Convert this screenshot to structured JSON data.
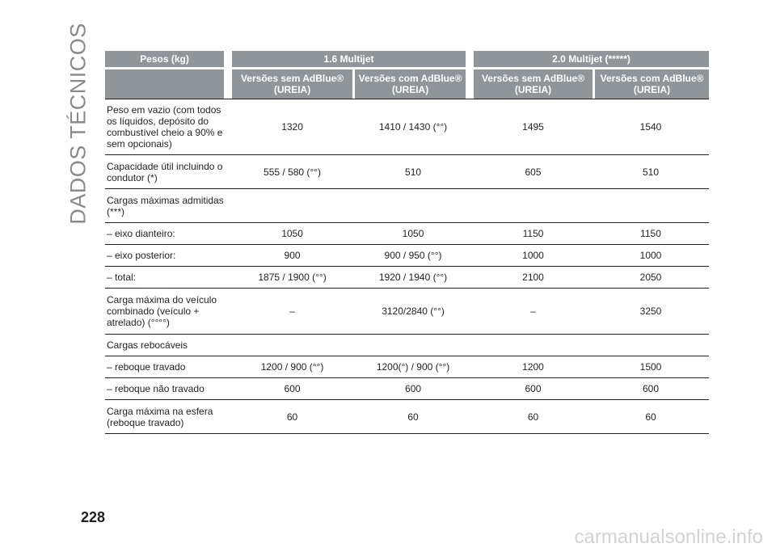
{
  "side_title": "DADOS TÉCNICOS",
  "page_number": "228",
  "watermark": "carmanualsonline.info",
  "table": {
    "header_top": [
      "Pesos (kg)",
      "1.6 Multijet",
      "2.0 Multijet (*****)"
    ],
    "header_sub": [
      "Versões sem AdBlue® (UREIA)",
      "Versões com AdBlue® (UREIA)",
      "Versões sem AdBlue® (UREIA)",
      "Versões com AdBlue® (UREIA)"
    ],
    "rows": [
      {
        "label": "Peso em vazio (com todos os líquidos, depósito do combustível cheio a 90% e sem opcionais)",
        "values": [
          "1320",
          "1410 / 1430 (°°)",
          "1495",
          "1540"
        ]
      },
      {
        "label": "Capacidade útil incluindo o condutor (*)",
        "values": [
          "555 / 580 (°°)",
          "510",
          "605",
          "510"
        ]
      },
      {
        "label": "Cargas máximas admitidas (***)",
        "values": [
          "",
          "",
          "",
          ""
        ]
      },
      {
        "label": "– eixo dianteiro:",
        "values": [
          "1050",
          "1050",
          "1150",
          "1150"
        ]
      },
      {
        "label": "– eixo posterior:",
        "values": [
          "900",
          "900 / 950 (°°)",
          "1000",
          "1000"
        ]
      },
      {
        "label": "– total:",
        "values": [
          "1875 / 1900 (°°)",
          "1920 / 1940 (°°)",
          "2100",
          "2050"
        ]
      },
      {
        "label": "Carga máxima do veículo combinado (veículo + atrelado) (°°°°)",
        "values": [
          "–",
          "3120/2840 (°°)",
          "–",
          "3250"
        ]
      },
      {
        "label": "Cargas rebocáveis",
        "values": [
          "",
          "",
          "",
          ""
        ]
      },
      {
        "label": "– reboque travado",
        "values": [
          "1200 / 900 (°°)",
          "1200(°) / 900 (°°)",
          "1200",
          "1500"
        ]
      },
      {
        "label": "– reboque não travado",
        "values": [
          "600",
          "600",
          "600",
          "600"
        ]
      },
      {
        "label": "Carga máxima na esfera (reboque travado)",
        "values": [
          "60",
          "60",
          "60",
          "60"
        ]
      }
    ]
  }
}
